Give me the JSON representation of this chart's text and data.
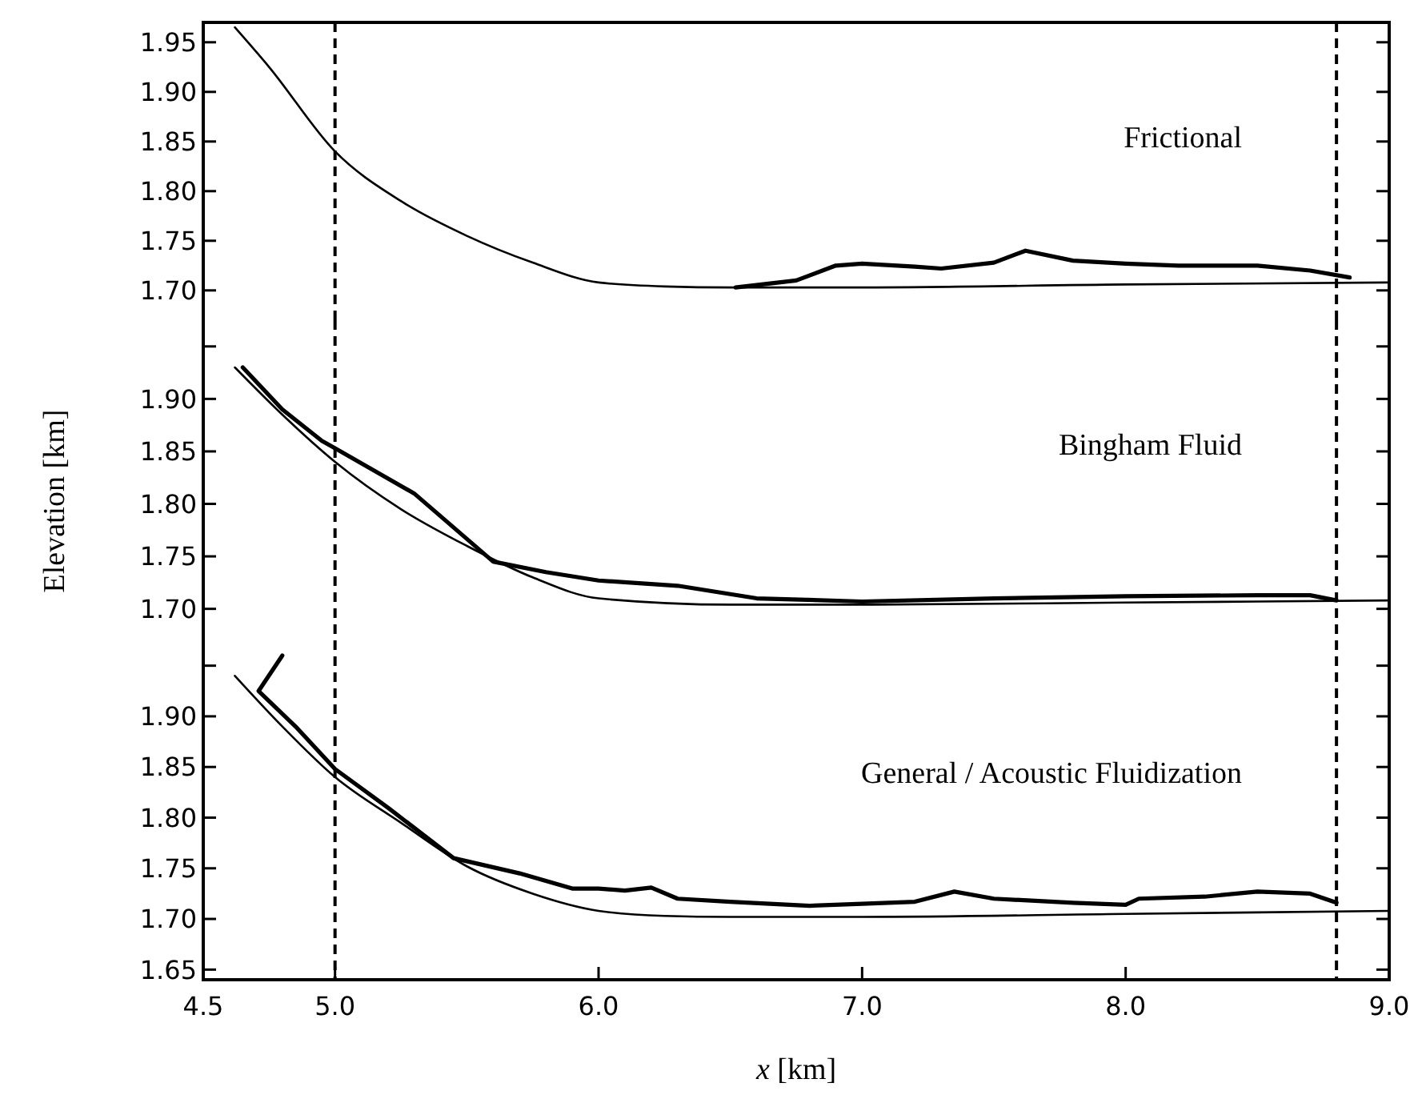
{
  "chart_data": [
    {
      "type": "line",
      "annotations": [
        "Frictional"
      ],
      "xlim": [
        4.5,
        9.0
      ],
      "ylim": [
        1.67,
        1.97
      ],
      "tick_labels": "y",
      "grid": false,
      "yticks": [
        {
          "value": 1.7,
          "label": "1.70"
        },
        {
          "value": 1.75,
          "label": "1.75"
        },
        {
          "value": 1.8,
          "label": "1.80"
        },
        {
          "value": 1.85,
          "label": "1.85"
        },
        {
          "value": 1.9,
          "label": "1.90"
        },
        {
          "value": 1.95,
          "label": "1.95"
        }
      ],
      "ref_lines": [
        {
          "axis": "x",
          "value": 5.0,
          "line_style": "dashed"
        },
        {
          "axis": "x",
          "value": 8.8,
          "line_style": "dashed"
        }
      ],
      "series": [
        {
          "color": "#000000",
          "x": [
            4.62,
            4.75,
            5.0,
            5.25,
            5.5,
            5.75,
            6.0,
            6.25,
            6.5,
            7.0,
            8.0,
            9.0
          ],
          "values": [
            1.965,
            1.925,
            1.84,
            1.79,
            1.755,
            1.728,
            1.708,
            1.704,
            1.703,
            1.703,
            1.706,
            1.708
          ]
        },
        {
          "color": "#000000",
          "x": [
            6.52,
            6.75,
            6.9,
            7.0,
            7.2,
            7.3,
            7.5,
            7.62,
            7.8,
            8.0,
            8.2,
            8.5,
            8.7,
            8.85
          ],
          "values": [
            1.703,
            1.71,
            1.725,
            1.727,
            1.724,
            1.722,
            1.728,
            1.74,
            1.73,
            1.727,
            1.725,
            1.725,
            1.72,
            1.713
          ]
        }
      ]
    },
    {
      "type": "line",
      "annotations": [
        "Bingham Fluid"
      ],
      "ylabel": "Elevation [km]",
      "xlim": [
        4.5,
        9.0
      ],
      "ylim": [
        1.67,
        1.975
      ],
      "tick_labels": "y",
      "grid": false,
      "yticks": [
        {
          "value": 1.7,
          "label": "1.70"
        },
        {
          "value": 1.75,
          "label": "1.75"
        },
        {
          "value": 1.8,
          "label": "1.80"
        },
        {
          "value": 1.85,
          "label": "1.85"
        },
        {
          "value": 1.9,
          "label": "1.90"
        },
        {
          "value": 1.95,
          "label": null
        }
      ],
      "ref_lines": [
        {
          "axis": "x",
          "value": 5.0,
          "line_style": "dashed"
        },
        {
          "axis": "x",
          "value": 8.8,
          "line_style": "dashed"
        }
      ],
      "series": [
        {
          "color": "#000000",
          "x": [
            4.62,
            4.8,
            5.0,
            5.25,
            5.5,
            5.75,
            6.0,
            6.5,
            7.0,
            8.0,
            9.0
          ],
          "values": [
            1.93,
            1.885,
            1.84,
            1.795,
            1.76,
            1.73,
            1.71,
            1.704,
            1.704,
            1.706,
            1.708
          ]
        },
        {
          "color": "#000000",
          "x": [
            4.65,
            4.8,
            4.95,
            5.0,
            5.3,
            5.6,
            5.8,
            6.0,
            6.3,
            6.6,
            7.0,
            7.5,
            8.0,
            8.5,
            8.7,
            8.8
          ],
          "values": [
            1.93,
            1.89,
            1.86,
            1.853,
            1.81,
            1.745,
            1.735,
            1.727,
            1.722,
            1.71,
            1.707,
            1.71,
            1.712,
            1.713,
            1.713,
            1.708
          ]
        }
      ]
    },
    {
      "type": "line",
      "annotations": [
        "General / Acoustic Fluidization"
      ],
      "xlabel": "x [km]",
      "xlim": [
        4.5,
        9.0
      ],
      "ylim": [
        1.64,
        1.975
      ],
      "grid": false,
      "xticks": [
        {
          "value": 4.5,
          "label": "4.5"
        },
        {
          "value": 5,
          "label": "5.0"
        },
        {
          "value": 6,
          "label": "6.0"
        },
        {
          "value": 7,
          "label": "7.0"
        },
        {
          "value": 8,
          "label": "8.0"
        },
        {
          "value": 9,
          "label": "9.0"
        }
      ],
      "yticks": [
        {
          "value": 1.65,
          "label": "1.65"
        },
        {
          "value": 1.7,
          "label": "1.70"
        },
        {
          "value": 1.75,
          "label": "1.75"
        },
        {
          "value": 1.8,
          "label": "1.80"
        },
        {
          "value": 1.85,
          "label": "1.85"
        },
        {
          "value": 1.9,
          "label": "1.90"
        },
        {
          "value": 1.95,
          "label": null
        }
      ],
      "ref_lines": [
        {
          "axis": "x",
          "value": 5.0,
          "line_style": "dashed"
        },
        {
          "axis": "x",
          "value": 8.8,
          "line_style": "dashed"
        }
      ],
      "series": [
        {
          "color": "#000000",
          "x": [
            4.62,
            4.8,
            5.0,
            5.25,
            5.5,
            5.75,
            6.0,
            6.25,
            6.5,
            7.0,
            8.0,
            9.0
          ],
          "values": [
            1.94,
            1.89,
            1.84,
            1.795,
            1.752,
            1.725,
            1.708,
            1.703,
            1.702,
            1.702,
            1.705,
            1.708
          ]
        },
        {
          "color": "#000000",
          "x": [
            4.8,
            4.71,
            4.85,
            5.0,
            5.2,
            5.45,
            5.7,
            5.9,
            6.0,
            6.1,
            6.2,
            6.3,
            6.5,
            6.8,
            7.0,
            7.2,
            7.35,
            7.5,
            7.8,
            8.0,
            8.05,
            8.3,
            8.5,
            8.7,
            8.8
          ],
          "values": [
            1.96,
            1.925,
            1.89,
            1.848,
            1.81,
            1.76,
            1.745,
            1.73,
            1.73,
            1.728,
            1.731,
            1.72,
            1.717,
            1.713,
            1.715,
            1.717,
            1.727,
            1.72,
            1.716,
            1.714,
            1.72,
            1.722,
            1.727,
            1.725,
            1.716
          ]
        }
      ]
    }
  ]
}
